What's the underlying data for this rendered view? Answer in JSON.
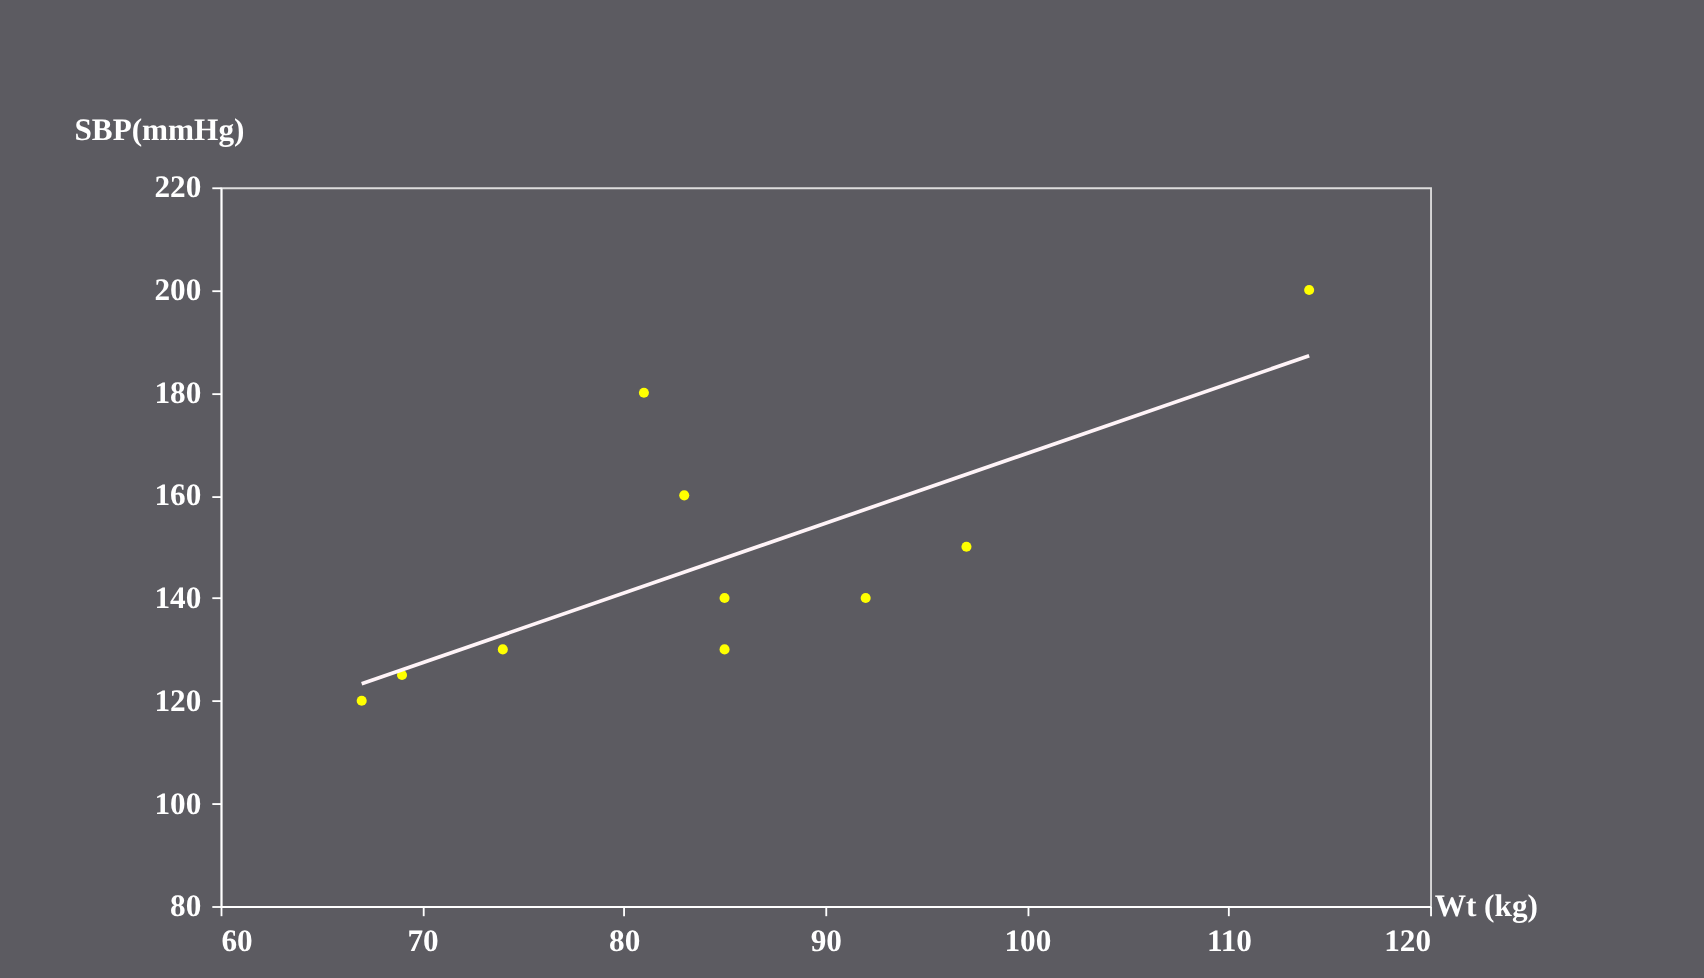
{
  "chart_data": {
    "type": "scatter",
    "xlabel": "Wt (kg)",
    "ylabel": "SBP(mmHg)",
    "xlim": [
      60,
      120
    ],
    "xticks": [
      60,
      70,
      80,
      90,
      100,
      110,
      120
    ],
    "ylim": [
      80,
      220
    ],
    "yticks": [
      80,
      100,
      120,
      140,
      160,
      180,
      200,
      220
    ],
    "grid": false,
    "marker": "circle",
    "series": [
      {
        "color": "#ffff00",
        "x": [
          67,
          69,
          74,
          81,
          83,
          85,
          85,
          92,
          97,
          114
        ],
        "values": [
          120,
          125,
          130,
          180,
          160,
          140,
          130,
          140,
          150,
          200
        ]
      },
      {
        "type": "line",
        "color": "#fff4f8",
        "line_style": "solid",
        "marker": "none",
        "x": [
          67,
          114
        ],
        "values": [
          123.3,
          187.2
        ]
      }
    ]
  }
}
